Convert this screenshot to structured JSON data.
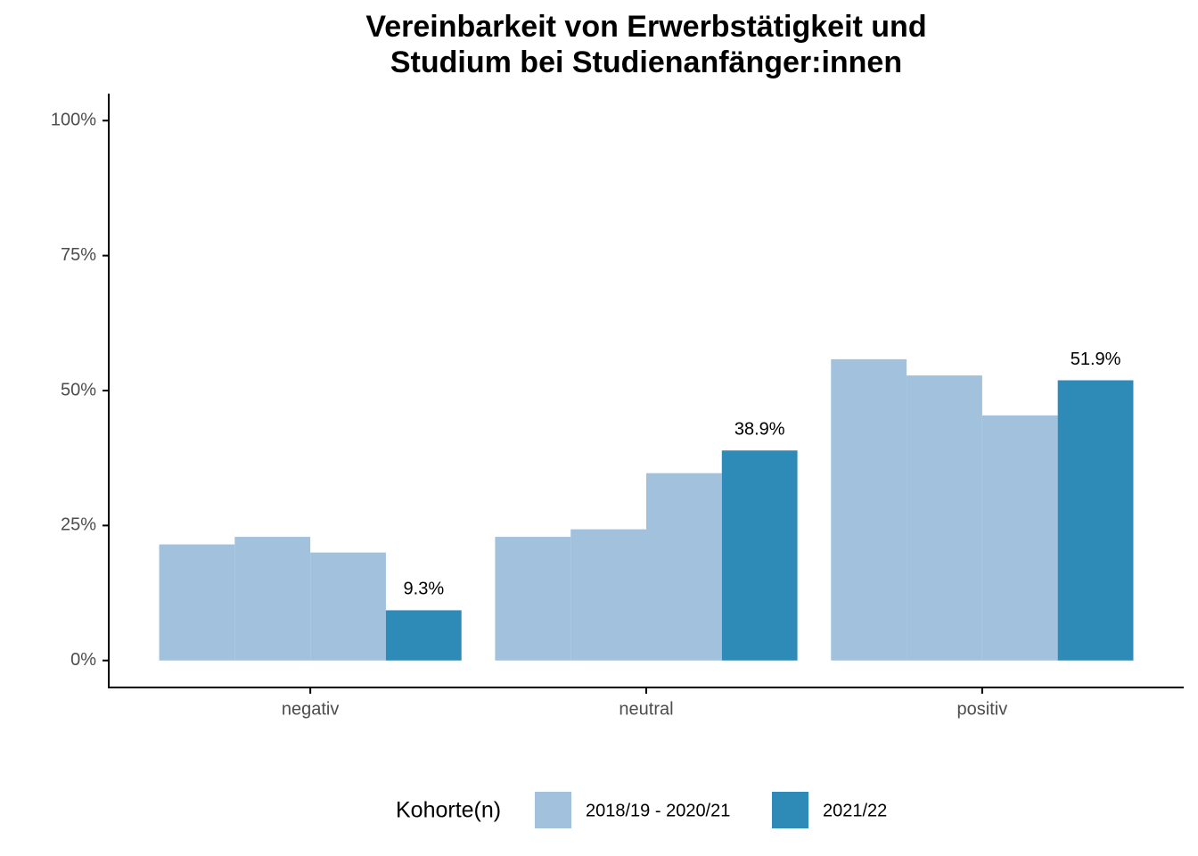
{
  "chart_data": {
    "type": "bar",
    "title": "Vereinbarkeit von Erwerbstätigkeit und\nStudium bei Studienanfänger:innen",
    "categories": [
      "negativ",
      "neutral",
      "positiv"
    ],
    "legend_title": "Kohorte(n)",
    "series": [
      {
        "name": "2018/19 - 2020/21",
        "color": "#a1c1dd",
        "values": [
          [
            21.5,
            22.9,
            20.0
          ],
          [
            22.9,
            24.3,
            34.7
          ],
          [
            55.8,
            52.8,
            45.4
          ]
        ]
      },
      {
        "name": "2021/22",
        "color": "#2e8bb7",
        "values": [
          9.3,
          38.9,
          51.9
        ],
        "value_labels": [
          "9.3%",
          "38.9%",
          "51.9%"
        ]
      }
    ],
    "ylim": [
      -5,
      105
    ],
    "yticks": [
      {
        "value": 0,
        "label": "0%"
      },
      {
        "value": 25,
        "label": "25%"
      },
      {
        "value": 50,
        "label": "50%"
      },
      {
        "value": 75,
        "label": "75%"
      },
      {
        "value": 100,
        "label": "100%"
      }
    ],
    "grid": false,
    "legend_position": "bottom"
  }
}
